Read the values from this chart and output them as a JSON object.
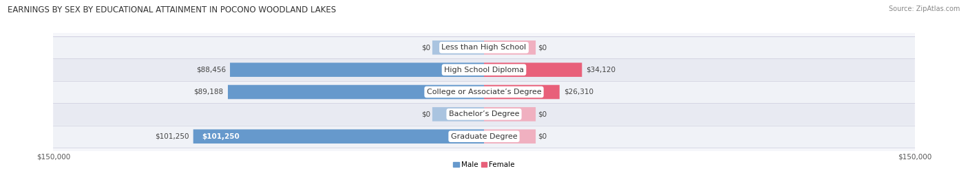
{
  "title": "EARNINGS BY SEX BY EDUCATIONAL ATTAINMENT IN POCONO WOODLAND LAKES",
  "source": "Source: ZipAtlas.com",
  "categories": [
    "Less than High School",
    "High School Diploma",
    "College or Associate’s Degree",
    "Bachelor’s Degree",
    "Graduate Degree"
  ],
  "male_values": [
    0,
    88456,
    89188,
    0,
    101250
  ],
  "female_values": [
    0,
    34120,
    26310,
    0,
    0
  ],
  "male_labels": [
    "$0",
    "$88,456",
    "$89,188",
    "$0",
    "$101,250"
  ],
  "female_labels": [
    "$0",
    "$34,120",
    "$26,310",
    "$0",
    "$0"
  ],
  "male_color": "#6699cc",
  "male_color_light": "#aac4e0",
  "female_color": "#e8607a",
  "female_color_light": "#f0b0c0",
  "row_colors": [
    "#f0f2f7",
    "#e8eaf2",
    "#f0f2f7",
    "#e8eaf2",
    "#f0f2f7"
  ],
  "max_value": 150000,
  "xlabel_left": "$150,000",
  "xlabel_right": "$150,000",
  "title_fontsize": 8.5,
  "source_fontsize": 7,
  "label_fontsize": 8,
  "value_fontsize": 7.5,
  "axis_fontsize": 7.5,
  "legend_fontsize": 7.5,
  "zero_bar_size": 18000,
  "bar_height": 0.62
}
